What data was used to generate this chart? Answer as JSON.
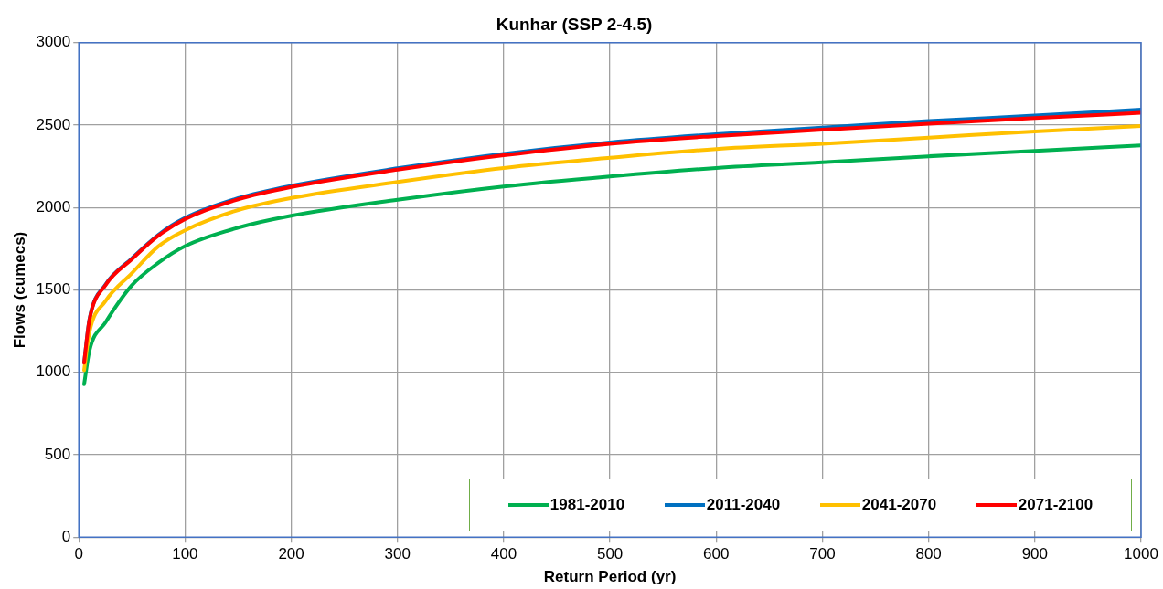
{
  "chart_data": {
    "type": "line",
    "title": "Kunhar (SSP 2-4.5)",
    "xlabel": "Return Period (yr)",
    "ylabel": "Flows (cumecs)",
    "x": [
      5,
      10,
      25,
      50,
      75,
      100,
      150,
      200,
      300,
      400,
      500,
      600,
      700,
      800,
      900,
      1000
    ],
    "series": [
      {
        "name": "1981-2010",
        "color": "#00b050",
        "values": [
          928,
          1132,
          1302,
          1528,
          1665,
          1766,
          1878,
          1950,
          2047,
          2128,
          2189,
          2240,
          2274,
          2311,
          2343,
          2377
        ]
      },
      {
        "name": "2011-2040",
        "color": "#0070c0",
        "values": [
          1060,
          1322,
          1532,
          1692,
          1835,
          1937,
          2057,
          2132,
          2238,
          2326,
          2395,
          2445,
          2485,
          2525,
          2558,
          2594
        ]
      },
      {
        "name": "2041-2070",
        "color": "#ffc000",
        "values": [
          1013,
          1245,
          1432,
          1602,
          1765,
          1862,
          1985,
          2058,
          2155,
          2240,
          2302,
          2355,
          2387,
          2424,
          2462,
          2494
        ]
      },
      {
        "name": "2071-2100",
        "color": "#ff0000",
        "values": [
          1058,
          1319,
          1528,
          1687,
          1830,
          1930,
          2050,
          2125,
          2230,
          2317,
          2387,
          2434,
          2472,
          2509,
          2543,
          2575
        ]
      }
    ],
    "xlim": [
      0,
      1000
    ],
    "xticks": [
      0,
      100,
      200,
      300,
      400,
      500,
      600,
      700,
      800,
      900,
      1000
    ],
    "ylim": [
      0,
      3000
    ],
    "yticks": [
      0,
      500,
      1000,
      1500,
      2000,
      2500,
      3000
    ],
    "grid": true,
    "legend": "bottom right",
    "marker": "none",
    "line_style": "solid"
  }
}
